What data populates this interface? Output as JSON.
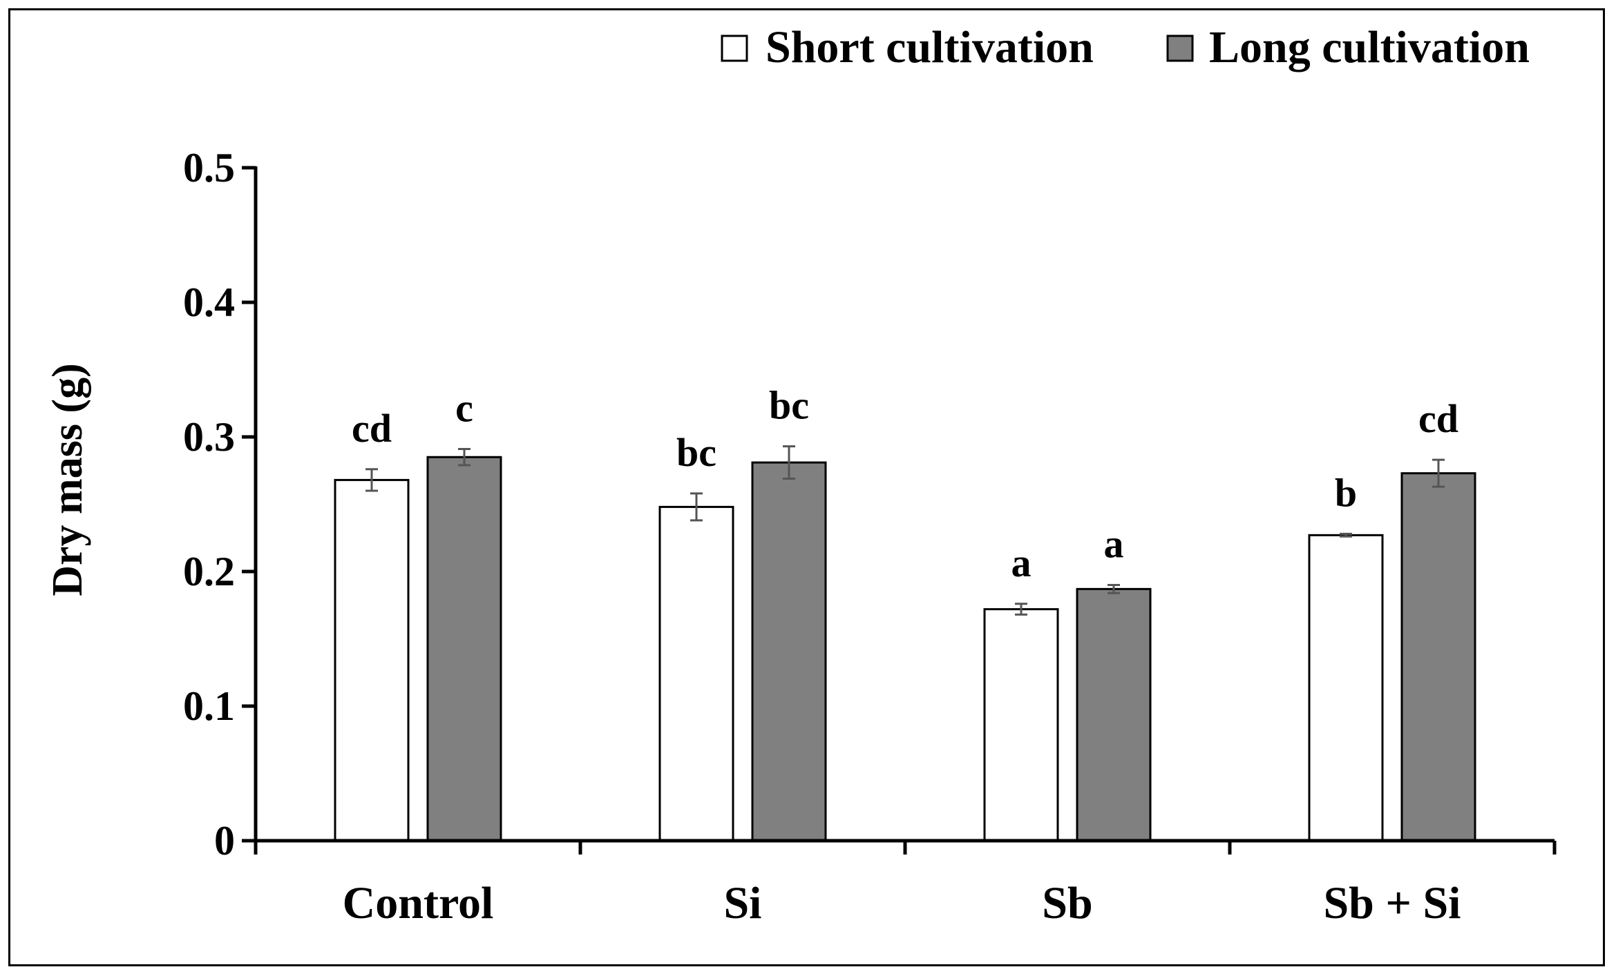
{
  "chart_data": {
    "type": "bar",
    "title": "",
    "xlabel": "",
    "ylabel": "Dry mass (g)",
    "ylim": [
      0,
      0.5
    ],
    "yticks": [
      "0",
      "0.1",
      "0.2",
      "0.3",
      "0.4",
      "0.5"
    ],
    "categories": [
      "Control",
      "Si",
      "Sb",
      "Sb + Si"
    ],
    "legend_position": "top-right",
    "series": [
      {
        "name": "Short cultivation",
        "color": "#ffffff",
        "values": [
          0.268,
          0.248,
          0.172,
          0.227
        ],
        "errors": [
          0.008,
          0.01,
          0.004,
          0.001
        ],
        "letters": [
          "cd",
          "bc",
          "a",
          "b"
        ]
      },
      {
        "name": "Long cultivation",
        "color": "#808080",
        "values": [
          0.285,
          0.281,
          0.187,
          0.273
        ],
        "errors": [
          0.006,
          0.012,
          0.003,
          0.01
        ],
        "letters": [
          "c",
          "bc",
          "a",
          "cd"
        ]
      }
    ],
    "colors": {
      "axis": "#000000",
      "error_bar": "#555555",
      "bar_outline": "#000000"
    }
  }
}
